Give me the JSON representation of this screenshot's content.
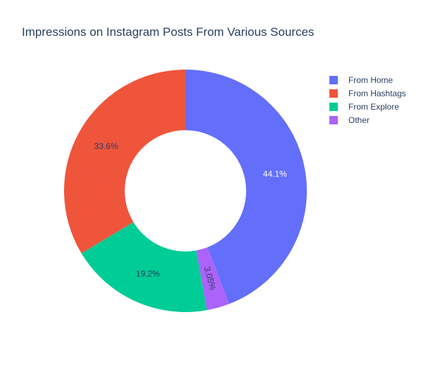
{
  "chart_data": {
    "type": "pie",
    "title": "Impressions on Instagram Posts From Various Sources",
    "hole": 0.5,
    "legend_position": "top-right",
    "slices": [
      {
        "label": "From Home",
        "value": 44.1,
        "display": "44.1%",
        "color": "#636efa",
        "label_color": "#ffffff"
      },
      {
        "label": "From Hashtags",
        "value": 33.6,
        "display": "33.6%",
        "color": "#ef553b",
        "label_color": "#2a3f5f"
      },
      {
        "label": "From Explore",
        "value": 19.2,
        "display": "19.2%",
        "color": "#00cc96",
        "label_color": "#2a3f5f"
      },
      {
        "label": "Other",
        "value": 3.05,
        "display": "3.05%",
        "color": "#ab63fa",
        "label_color": "#2a3f5f"
      }
    ],
    "slice_order": [
      0,
      3,
      2,
      1
    ]
  }
}
